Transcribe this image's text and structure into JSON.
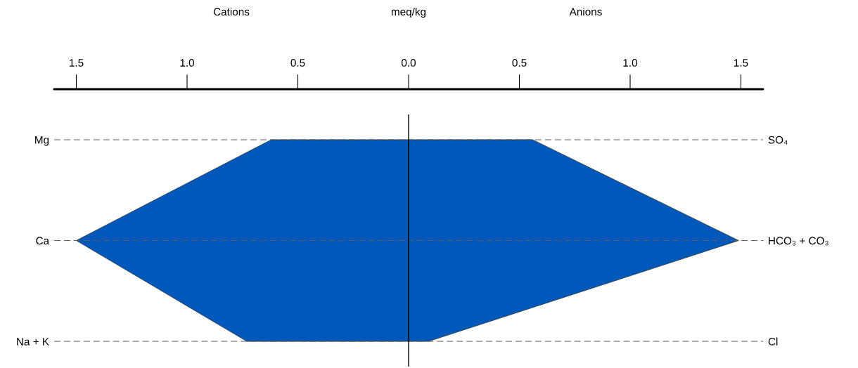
{
  "chart_data": {
    "type": "area",
    "orientation": "horizontal",
    "xlabel": "meq/kg",
    "annotations": [
      "Cations",
      "Anions"
    ],
    "categories": [
      "Mg",
      "Ca",
      "Na + K"
    ],
    "y2_categories": [
      "SO₄",
      "HCO₃ + CO₃",
      "Cl"
    ],
    "series": [
      {
        "color": "#0058bb",
        "values": [
          -0.62,
          -1.5,
          -0.73
        ]
      },
      {
        "color": "#0058bb",
        "values": [
          0.56,
          1.49,
          0.09
        ]
      }
    ],
    "xlim": [
      -1.6,
      1.6
    ],
    "xticks": [
      {
        "value": -1.5,
        "label": "1.5"
      },
      {
        "value": -1.0,
        "label": "1.0"
      },
      {
        "value": -0.5,
        "label": "0.5"
      },
      {
        "value": 0,
        "label": "0.0"
      },
      {
        "value": 0.5,
        "label": "0.5"
      },
      {
        "value": 1.0,
        "label": "1.0"
      },
      {
        "value": 1.5,
        "label": "1.5"
      }
    ],
    "grid": "y",
    "ref_lines": [
      {
        "axis": "x",
        "value": 0,
        "color": "#000000"
      }
    ]
  }
}
